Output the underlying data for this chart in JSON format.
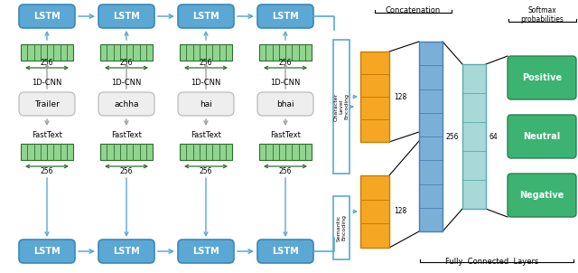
{
  "bg_color": "#ffffff",
  "lstm_color": "#5ba8d4",
  "lstm_border": "#3a88b8",
  "cnn_embed_color": "#90d490",
  "cnn_embed_dark": "#2d6e2d",
  "orange_color": "#f5a623",
  "orange_border": "#c97d00",
  "blue_layer_color": "#7ab0d8",
  "blue_layer_border": "#4a80b0",
  "teal_color": "#a8d8d8",
  "teal_border": "#5aabab",
  "green_output_color": "#3cb371",
  "green_output_border": "#2a8050",
  "arrow_blue": "#5ba8d4",
  "arrow_gray": "#a0a0a0",
  "words": [
    "Trailer",
    "achha",
    "hai",
    "bhai"
  ],
  "figure_size": [
    6.4,
    3.02
  ],
  "dpi": 100
}
